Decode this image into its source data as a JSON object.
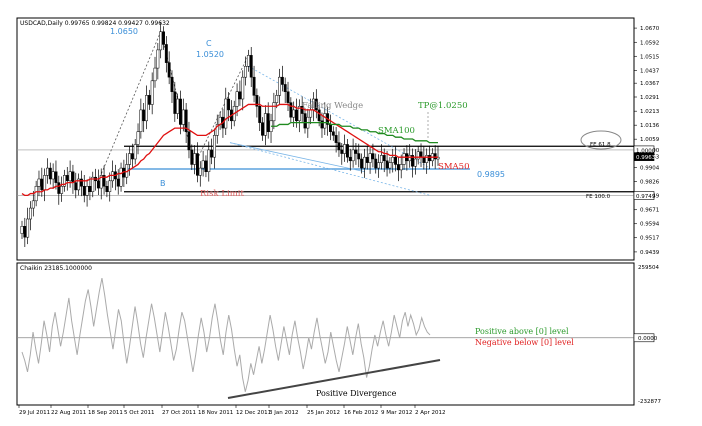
{
  "chart_data": [
    {
      "type": "candlestick",
      "header": "USDCAD,Daily  0.99765 0.99824 0.99427 0.99632",
      "yticks": [
        1.067,
        1.0592,
        1.0515,
        1.0437,
        1.0367,
        1.0291,
        1.0213,
        1.0136,
        1.0059,
        1.0,
        0.9963,
        0.9904,
        0.9826,
        0.9749,
        0.9671,
        0.9594,
        0.9517,
        0.9439
      ],
      "ylim": [
        0.94,
        1.072
      ],
      "price_tags": [
        {
          "value": "1.0000",
          "price": 1.0
        },
        {
          "value": "0.9963",
          "price": 0.9963
        },
        {
          "value": "0.9749",
          "price": 0.9749
        }
      ],
      "candles_close": [
        0.958,
        0.952,
        0.962,
        0.968,
        0.972,
        0.98,
        0.984,
        0.978,
        0.986,
        0.99,
        0.984,
        0.988,
        0.982,
        0.976,
        0.98,
        0.986,
        0.983,
        0.988,
        0.982,
        0.978,
        0.984,
        0.98,
        0.975,
        0.98,
        0.977,
        0.985,
        0.983,
        0.979,
        0.986,
        0.98,
        0.977,
        0.983,
        0.988,
        0.984,
        0.98,
        0.99,
        0.985,
        0.992,
        0.998,
        0.995,
        1.003,
        1.01,
        1.022,
        1.016,
        1.03,
        1.025,
        1.038,
        1.045,
        1.055,
        1.065,
        1.058,
        1.048,
        1.04,
        1.032,
        1.02,
        1.028,
        1.014,
        1.022,
        1.01,
        1.0,
        0.992,
        0.998,
        0.986,
        0.99,
        0.994,
        0.988,
        1.0,
        0.996,
        1.008,
        1.014,
        1.018,
        1.012,
        1.028,
        1.022,
        1.016,
        1.024,
        1.032,
        1.028,
        1.04,
        1.046,
        1.052,
        1.04,
        1.03,
        1.024,
        1.015,
        1.008,
        1.02,
        1.01,
        1.016,
        1.026,
        1.03,
        1.04,
        1.036,
        1.032,
        1.026,
        1.018,
        1.022,
        1.016,
        1.024,
        1.02,
        1.012,
        1.018,
        1.022,
        1.028,
        1.022,
        1.016,
        1.012,
        1.02,
        1.014,
        1.01,
        1.008,
        1.004,
        1.0,
        0.998,
        1.003,
        0.996,
        0.994,
        1.0,
        0.998,
        0.995,
        0.99,
        0.996,
        0.993,
        0.998,
        0.995,
        0.99,
        0.993,
        0.997,
        0.994,
        0.99,
        0.993,
        0.996,
        0.992,
        0.989,
        0.992,
        0.998,
        0.994,
        0.997,
        0.991,
        0.995,
        0.999,
        0.996,
        0.993,
        0.997,
        0.994,
        0.998,
        0.995,
        0.996
      ],
      "sma50": [
        0.976,
        0.975,
        0.975,
        0.976,
        0.976,
        0.977,
        0.977,
        0.977,
        0.978,
        0.978,
        0.979,
        0.979,
        0.98,
        0.98,
        0.981,
        0.981,
        0.982,
        0.982,
        0.982,
        0.983,
        0.983,
        0.983,
        0.983,
        0.983,
        0.984,
        0.984,
        0.984,
        0.984,
        0.985,
        0.985,
        0.985,
        0.986,
        0.986,
        0.986,
        0.987,
        0.987,
        0.988,
        0.988,
        0.989,
        0.99,
        0.991,
        0.992,
        0.994,
        0.995,
        0.997,
        0.998,
        1.0,
        1.002,
        1.004,
        1.006,
        1.008,
        1.009,
        1.01,
        1.011,
        1.012,
        1.012,
        1.012,
        1.012,
        1.012,
        1.011,
        1.01,
        1.009,
        1.008,
        1.008,
        1.008,
        1.008,
        1.009,
        1.01,
        1.011,
        1.013,
        1.014,
        1.015,
        1.017,
        1.018,
        1.019,
        1.02,
        1.021,
        1.022,
        1.023,
        1.024,
        1.025,
        1.025,
        1.025,
        1.025,
        1.025,
        1.024,
        1.024,
        1.024,
        1.024,
        1.024,
        1.024,
        1.025,
        1.025,
        1.025,
        1.025,
        1.024,
        1.024,
        1.023,
        1.023,
        1.023,
        1.022,
        1.022,
        1.022,
        1.022,
        1.021,
        1.02,
        1.019,
        1.018,
        1.017,
        1.016,
        1.015,
        1.014,
        1.013,
        1.012,
        1.011,
        1.01,
        1.009,
        1.008,
        1.007,
        1.006,
        1.005,
        1.004,
        1.003,
        1.002,
        1.001,
        1.0,
        0.999,
        0.999,
        0.998,
        0.998,
        0.997,
        0.997,
        0.997,
        0.996,
        0.996,
        0.996,
        0.996,
        0.996,
        0.996,
        0.996,
        0.996,
        0.996,
        0.996,
        0.996,
        0.996,
        0.996,
        0.996,
        0.996
      ],
      "sma100": [
        null,
        null,
        null,
        null,
        null,
        null,
        null,
        null,
        null,
        null,
        null,
        null,
        null,
        null,
        null,
        null,
        null,
        null,
        null,
        null,
        null,
        null,
        null,
        null,
        null,
        null,
        null,
        null,
        null,
        null,
        null,
        null,
        null,
        null,
        null,
        null,
        null,
        null,
        null,
        null,
        null,
        null,
        null,
        null,
        null,
        null,
        null,
        null,
        null,
        null,
        null,
        null,
        null,
        null,
        null,
        null,
        null,
        null,
        null,
        null,
        null,
        null,
        null,
        null,
        null,
        null,
        null,
        null,
        null,
        null,
        null,
        null,
        null,
        null,
        null,
        null,
        null,
        null,
        null,
        null,
        null,
        null,
        null,
        null,
        null,
        null,
        null,
        null,
        1.013,
        1.013,
        1.013,
        1.014,
        1.014,
        1.014,
        1.014,
        1.015,
        1.015,
        1.015,
        1.015,
        1.015,
        1.015,
        1.015,
        1.015,
        1.015,
        1.015,
        1.015,
        1.015,
        1.015,
        1.015,
        1.014,
        1.014,
        1.014,
        1.014,
        1.013,
        1.013,
        1.013,
        1.013,
        1.012,
        1.012,
        1.012,
        1.011,
        1.011,
        1.011,
        1.01,
        1.01,
        1.01,
        1.009,
        1.009,
        1.009,
        1.008,
        1.008,
        1.008,
        1.007,
        1.007,
        1.007,
        1.006,
        1.006,
        1.006,
        1.006,
        1.005,
        1.005,
        1.005,
        1.005,
        1.005,
        1.004,
        1.004,
        1.004,
        1.004
      ],
      "levels": [
        {
          "label": "FE 61.8",
          "price": 1.002
        },
        {
          "label": "FE 100.0",
          "price": 0.977
        },
        {
          "label": "0.9895",
          "price": 0.9895
        }
      ],
      "annotations": {
        "high_a": "1.0650",
        "c_label": "C",
        "c_value": "1.0520",
        "b_label": "B",
        "wedge": "Falling Wedge",
        "tp": "TP@1.0250",
        "sma100": "SMA100",
        "sma50": "SMA50",
        "risk": "Risk Limit"
      },
      "xticks": [
        "29 Jul 2011",
        "22 Aug 2011",
        "18 Sep 2011",
        "5 Oct 2011",
        "27 Oct 2011",
        "18 Nov 2011",
        "12 Dec 2011",
        "3 Jan 2012",
        "25 Jan 2012",
        "16 Feb 2012",
        "9 Mar 2012",
        "2 Apr 2012"
      ]
    },
    {
      "type": "line",
      "header": "Chaikin 23185.1000000",
      "yticks": [
        "259504",
        "0.0000",
        "-232877"
      ],
      "ylim": [
        -232877,
        259504
      ],
      "values": [
        -50000,
        -80000,
        -120000,
        -60000,
        20000,
        -40000,
        -90000,
        -20000,
        60000,
        10000,
        -50000,
        40000,
        90000,
        30000,
        -30000,
        20000,
        80000,
        140000,
        60000,
        0,
        -60000,
        10000,
        70000,
        130000,
        170000,
        110000,
        40000,
        100000,
        160000,
        210000,
        150000,
        80000,
        20000,
        -40000,
        30000,
        100000,
        60000,
        -20000,
        -90000,
        -30000,
        40000,
        110000,
        50000,
        -20000,
        -70000,
        0,
        60000,
        120000,
        70000,
        10000,
        -50000,
        20000,
        90000,
        40000,
        -20000,
        -80000,
        -40000,
        30000,
        90000,
        60000,
        0,
        -60000,
        -120000,
        -60000,
        10000,
        70000,
        20000,
        -50000,
        0,
        70000,
        120000,
        60000,
        -10000,
        -60000,
        20000,
        80000,
        30000,
        -40000,
        -100000,
        -60000,
        -140000,
        -190000,
        -150000,
        -90000,
        -130000,
        -80000,
        -30000,
        -90000,
        -40000,
        20000,
        80000,
        30000,
        -30000,
        -80000,
        -20000,
        40000,
        -10000,
        -60000,
        10000,
        60000,
        0,
        -50000,
        -110000,
        -60000,
        0,
        -40000,
        20000,
        70000,
        10000,
        -40000,
        -90000,
        -50000,
        20000,
        -30000,
        -80000,
        -120000,
        -70000,
        -20000,
        40000,
        -10000,
        -60000,
        0,
        50000,
        -20000,
        -70000,
        -140000,
        -100000,
        -40000,
        10000,
        -30000,
        20000,
        60000,
        10000,
        -30000,
        20000,
        80000,
        40000,
        0,
        60000,
        90000,
        40000,
        80000,
        50000,
        10000,
        30000,
        70000,
        40000,
        20000,
        10000
      ],
      "notes": {
        "above": "Positive above [0] level",
        "below": "Negative below [0] level",
        "divergence": "Positive Divergence"
      }
    }
  ]
}
